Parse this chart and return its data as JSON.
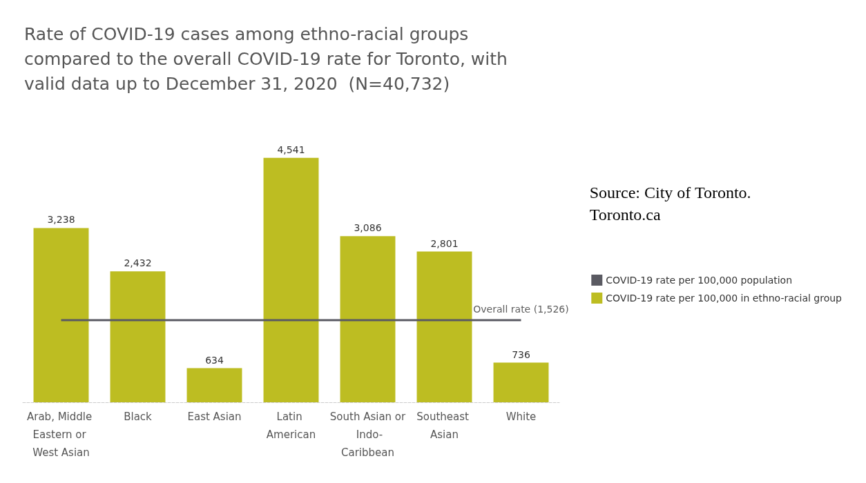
{
  "chart_data": {
    "type": "bar",
    "title": "Rate of COVID-19 cases among ethno-racial groups\ncompared to the overall COVID-19 rate for Toronto, with\nvalid data up to December 31, 2020  (N=40,732)",
    "categories": [
      "Arab, Middle Eastern or West Asian",
      "Black",
      "East Asian",
      "Latin American",
      "South Asian or Indo-Caribbean",
      "Southeast Asian",
      "White"
    ],
    "series": [
      {
        "name": "COVID-19 rate per 100,000 population",
        "type": "line",
        "color": "#5a5a62",
        "values": [
          1526,
          1526,
          1526,
          1526,
          1526,
          1526,
          1526
        ],
        "marker": "none"
      },
      {
        "name": "COVID-19 rate per 100,000 in ethno-racial group",
        "color": "#bdbd22",
        "values": [
          3238,
          2432,
          634,
          4541,
          3086,
          2801,
          736
        ],
        "value_labels": [
          "3,238",
          "2,432",
          "634",
          "4,541",
          "3,086",
          "2,801",
          "736"
        ]
      }
    ],
    "annotations": [
      "Source: City of Toronto.\nToronto.ca",
      {
        "text": "Overall rate (1,526)",
        "x": "White",
        "y": 1526
      }
    ],
    "legend": "right"
  }
}
